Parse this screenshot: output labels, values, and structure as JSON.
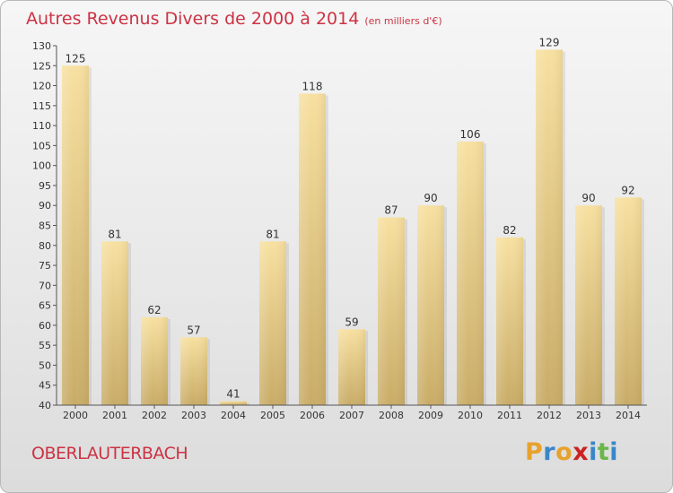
{
  "header": {
    "title": "Autres Revenus Divers de 2000 à 2014",
    "subtitle": "(en milliers d'€)"
  },
  "footer": {
    "city": "OBERLAUTERBACH",
    "logo": "Proxiti"
  },
  "colors": {
    "title": "#cc3344",
    "bar_light": "#f7e0a0",
    "bar_dark": "#c8ab66",
    "logo": [
      "#e8a22b",
      "#3a86c8",
      "#e8a22b",
      "#cc2222",
      "#3a86c8",
      "#6bb64a",
      "#3a86c8"
    ]
  },
  "chart_data": {
    "type": "bar",
    "title": "Autres Revenus Divers de 2000 à 2014",
    "subtitle": "(en milliers d'€)",
    "categories": [
      "2000",
      "2001",
      "2002",
      "2003",
      "2004",
      "2005",
      "2006",
      "2007",
      "2008",
      "2009",
      "2010",
      "2011",
      "2012",
      "2013",
      "2014"
    ],
    "values": [
      125,
      81,
      62,
      57,
      41,
      81,
      118,
      59,
      87,
      90,
      106,
      82,
      129,
      90,
      92
    ],
    "ylim": [
      40,
      130
    ],
    "yticks": [
      40,
      45,
      50,
      55,
      60,
      65,
      70,
      75,
      80,
      85,
      90,
      95,
      100,
      105,
      110,
      115,
      120,
      125,
      130
    ],
    "grid": false,
    "legend": "none"
  }
}
